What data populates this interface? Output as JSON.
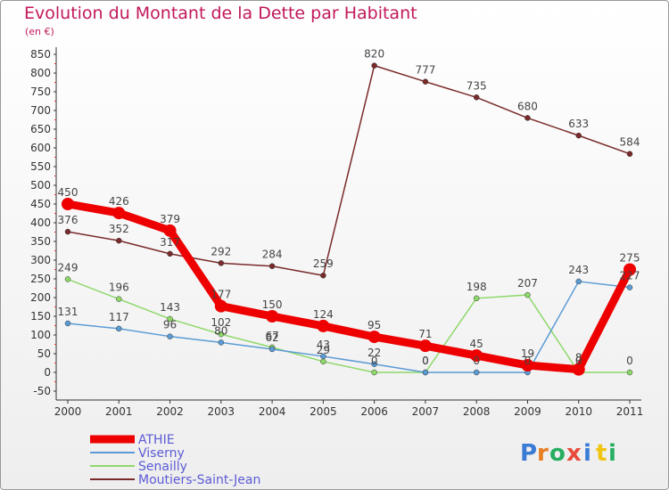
{
  "title": "Evolution du Montant de la Dette par Habitant",
  "subtitle": "(en €)",
  "brand": {
    "letters": [
      "P",
      "r",
      "o",
      "x",
      "i",
      "t",
      "i"
    ],
    "colors": [
      "#3a7bd5",
      "#e67e22",
      "#27ae60",
      "#e74c3c",
      "#3a7bd5",
      "#f1c40f",
      "#27ae60"
    ]
  },
  "chart_data": {
    "type": "line",
    "x": [
      "2000",
      "2001",
      "2002",
      "2003",
      "2004",
      "2005",
      "2006",
      "2007",
      "2008",
      "2009",
      "2010",
      "2011"
    ],
    "ylim": [
      -50,
      850
    ],
    "yticks": [
      -50,
      0,
      50,
      100,
      150,
      200,
      250,
      300,
      350,
      400,
      450,
      500,
      550,
      600,
      650,
      700,
      750,
      800,
      850
    ],
    "grid": false,
    "legend": "bottom-left",
    "series": [
      {
        "name": "ATHIE",
        "color": "#ee0000",
        "width": 9,
        "marker": 7,
        "values": [
          450,
          426,
          379,
          177,
          150,
          124,
          95,
          71,
          45,
          19,
          8,
          275
        ],
        "labels": [
          "450",
          "426",
          "379",
          "177",
          "150",
          "124",
          "95",
          "71",
          "45",
          "19",
          "8",
          "275"
        ]
      },
      {
        "name": "Viserny",
        "color": "#5b9bd5",
        "width": 1.5,
        "marker": 3,
        "values": [
          131,
          117,
          96,
          80,
          62,
          43,
          22,
          0,
          0,
          0,
          243,
          227
        ],
        "labels": [
          "131",
          "117",
          "96",
          "80",
          "62",
          "43",
          "22",
          "0",
          "0",
          "0",
          "243",
          "227"
        ]
      },
      {
        "name": "Senailly",
        "color": "#8ed86a",
        "width": 1.5,
        "marker": 3,
        "values": [
          249,
          196,
          143,
          102,
          67,
          29,
          0,
          0,
          198,
          207,
          0,
          0
        ],
        "labels": [
          "249",
          "196",
          "143",
          "102",
          "67",
          "29",
          "0",
          "0",
          "198",
          "207",
          "0",
          "0"
        ]
      },
      {
        "name": "Moutiers-Saint-Jean",
        "color": "#7a2a2a",
        "width": 1.5,
        "marker": 3,
        "values": [
          376,
          352,
          317,
          292,
          284,
          259,
          820,
          777,
          735,
          680,
          633,
          584
        ],
        "labels": [
          "376",
          "352",
          "317",
          "292",
          "284",
          "259",
          "820",
          "777",
          "735",
          "680",
          "633",
          "584"
        ]
      }
    ]
  }
}
